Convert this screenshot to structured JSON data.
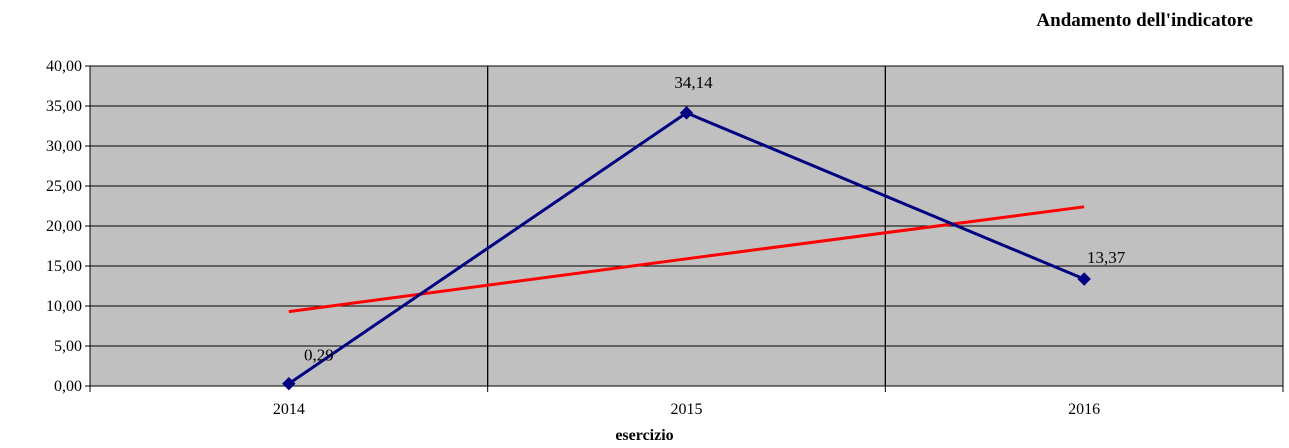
{
  "chart_data": {
    "type": "line",
    "title": "Andamento dell'indicatore",
    "xlabel": "esercizio",
    "ylabel": "",
    "categories": [
      "2014",
      "2015",
      "2016"
    ],
    "ylim": [
      0,
      40
    ],
    "yticks": [
      "0,00",
      "5,00",
      "10,00",
      "15,00",
      "20,00",
      "25,00",
      "30,00",
      "35,00",
      "40,00"
    ],
    "series": [
      {
        "values": [
          0.29,
          34.14,
          13.37
        ],
        "labels": [
          "0,29",
          "34,14",
          "13,37"
        ],
        "color": "#000080",
        "marker": "diamond"
      },
      {
        "values": [
          9.3,
          15.9,
          22.4
        ],
        "color": "#ff0000",
        "marker": "none"
      }
    ],
    "grid": true,
    "plot_background": "#c0c0c0",
    "legend": "none"
  }
}
